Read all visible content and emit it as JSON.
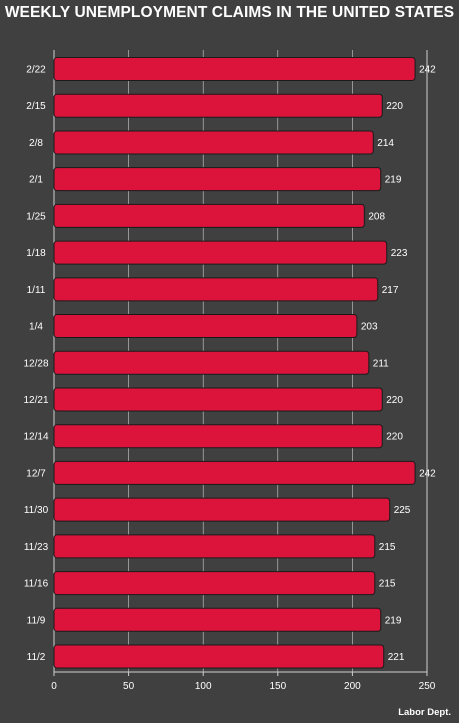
{
  "title": "WEEKLY UNEMPLOYMENT CLAIMS IN THE UNITED STATES",
  "source": "Labor Dept.",
  "colors": {
    "background": "#404040",
    "bar": "#dc143c",
    "bar_stroke": "#1a1a1a",
    "text": "#ffffff",
    "grid": "#d0d0d0"
  },
  "chart_data": {
    "type": "bar",
    "orientation": "horizontal",
    "title": "WEEKLY UNEMPLOYMENT CLAIMS IN THE UNITED STATES",
    "categories": [
      "2/22",
      "2/15",
      "2/8",
      "2/1",
      "1/25",
      "1/18",
      "1/11",
      "1/4",
      "12/28",
      "12/21",
      "12/14",
      "12/7",
      "11/30",
      "11/23",
      "11/16",
      "11/9",
      "11/2"
    ],
    "values": [
      242,
      220,
      214,
      219,
      208,
      223,
      217,
      203,
      211,
      220,
      220,
      242,
      225,
      215,
      215,
      219,
      221
    ],
    "xlim": [
      0,
      250
    ],
    "xticks": [
      0,
      50,
      100,
      150,
      200,
      250
    ],
    "grid": "vertical",
    "data_labels": true
  }
}
